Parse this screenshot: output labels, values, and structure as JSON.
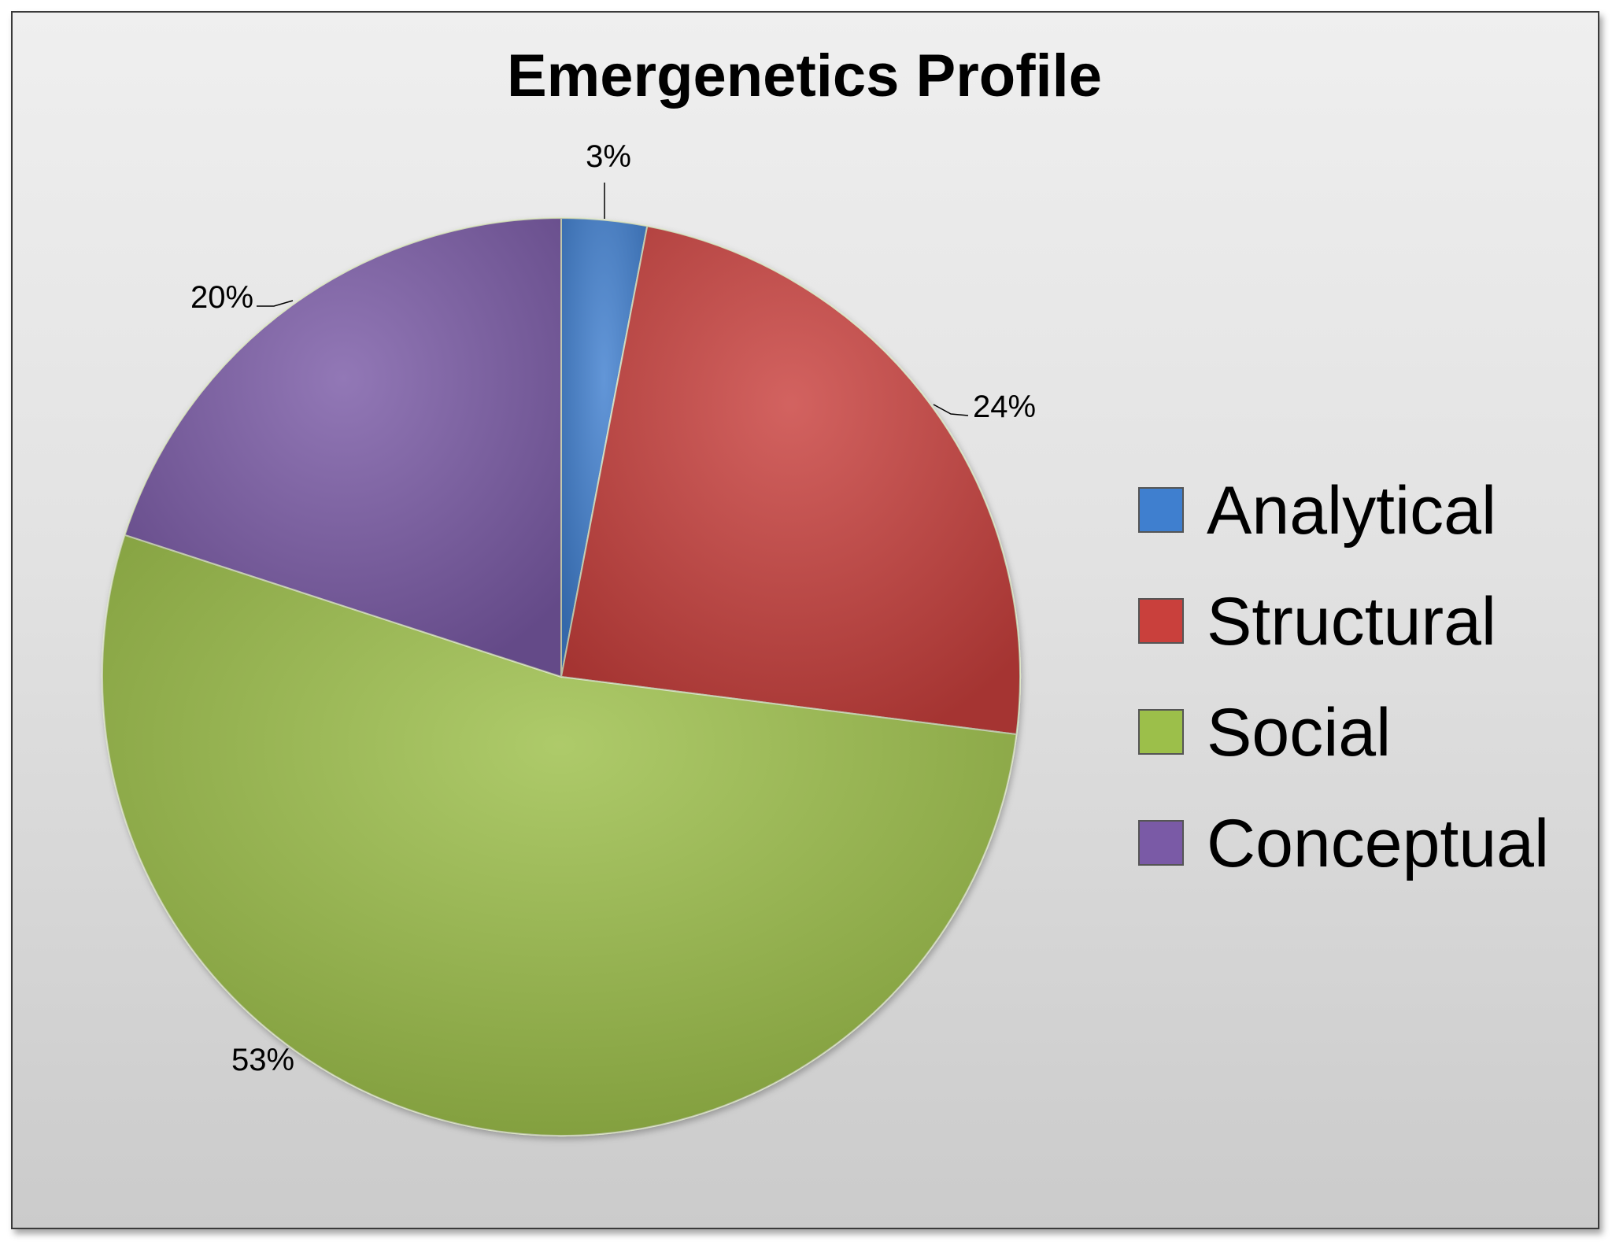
{
  "chart_data": {
    "type": "pie",
    "title": "Emergenetics Profile",
    "legend_position": "right",
    "slices": [
      {
        "name": "Analytical",
        "value": 3,
        "label": "3%",
        "color": "#3f7fcf"
      },
      {
        "name": "Structural",
        "value": 24,
        "label": "24%",
        "color": "#c9403c"
      },
      {
        "name": "Social",
        "value": 53,
        "label": "53%",
        "color": "#9cbf4a"
      },
      {
        "name": "Conceptual",
        "value": 20,
        "label": "20%",
        "color": "#7a5aa6"
      }
    ]
  }
}
